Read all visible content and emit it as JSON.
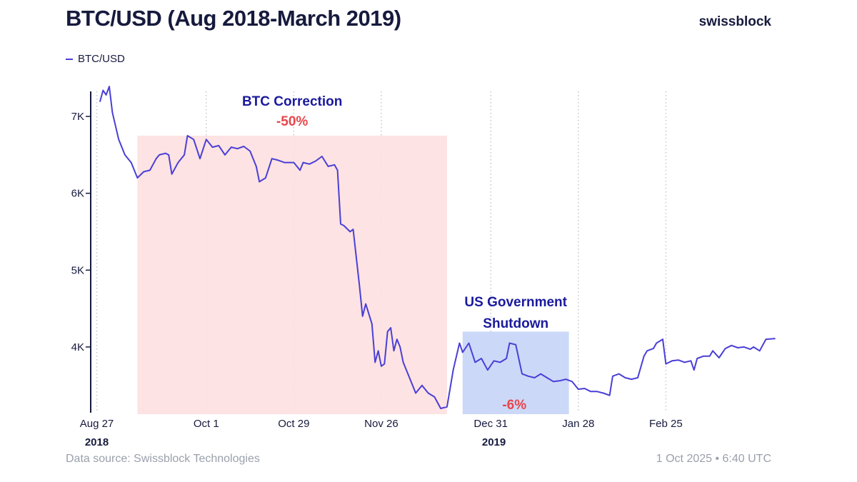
{
  "header": {
    "title": "BTC/USD (Aug 2018-March 2019)",
    "brand": "swissblock"
  },
  "footer": {
    "source": "Data source: Swissblock Technologies",
    "timestamp": "1 Oct 2025 • 6:40 UTC"
  },
  "colors": {
    "line": "#4a3fd6",
    "text": "#161a3d",
    "correction_fill": "#fde0e0",
    "shutdown_fill": "#c9d6f7",
    "red": "#e8464b",
    "navy": "#1a1a9e"
  },
  "chart_data": {
    "type": "line",
    "title": "BTC/USD (Aug 2018-March 2019)",
    "xlabel": "",
    "ylabel": "",
    "ylim": [
      3200,
      7400
    ],
    "grid": "vertical-dotted",
    "legend": {
      "entries": [
        "BTC/USD"
      ],
      "placement": "top-left"
    },
    "y_ticks": [
      {
        "value": 4000,
        "label": "4K"
      },
      {
        "value": 5000,
        "label": "5K"
      },
      {
        "value": 6000,
        "label": "6K"
      },
      {
        "value": 7000,
        "label": "7K"
      }
    ],
    "x_ticks": [
      {
        "date": "2018-08-27",
        "label": "Aug 27"
      },
      {
        "date": "2018-10-01",
        "label": "Oct 1"
      },
      {
        "date": "2018-10-29",
        "label": "Oct 29"
      },
      {
        "date": "2018-11-26",
        "label": "Nov 26"
      },
      {
        "date": "2018-12-31",
        "label": "Dec 31"
      },
      {
        "date": "2019-01-28",
        "label": "Jan 28"
      },
      {
        "date": "2019-02-25",
        "label": "Feb 25"
      }
    ],
    "year_labels": [
      {
        "date": "2018-08-27",
        "label": "2018"
      },
      {
        "date": "2019-01-01",
        "label": "2019"
      }
    ],
    "series": [
      {
        "name": "BTC/USD",
        "points": [
          [
            "2018-08-28",
            7190
          ],
          [
            "2018-08-29",
            7340
          ],
          [
            "2018-08-30",
            7280
          ],
          [
            "2018-08-31",
            7390
          ],
          [
            "2018-09-01",
            7050
          ],
          [
            "2018-09-03",
            6700
          ],
          [
            "2018-09-05",
            6500
          ],
          [
            "2018-09-07",
            6400
          ],
          [
            "2018-09-09",
            6200
          ],
          [
            "2018-09-11",
            6280
          ],
          [
            "2018-09-13",
            6300
          ],
          [
            "2018-09-15",
            6450
          ],
          [
            "2018-09-16",
            6500
          ],
          [
            "2018-09-18",
            6520
          ],
          [
            "2018-09-19",
            6500
          ],
          [
            "2018-09-20",
            6250
          ],
          [
            "2018-09-22",
            6400
          ],
          [
            "2018-09-24",
            6500
          ],
          [
            "2018-09-25",
            6750
          ],
          [
            "2018-09-27",
            6700
          ],
          [
            "2018-09-29",
            6450
          ],
          [
            "2018-10-01",
            6700
          ],
          [
            "2018-10-03",
            6600
          ],
          [
            "2018-10-05",
            6620
          ],
          [
            "2018-10-07",
            6500
          ],
          [
            "2018-10-09",
            6600
          ],
          [
            "2018-10-11",
            6580
          ],
          [
            "2018-10-13",
            6610
          ],
          [
            "2018-10-15",
            6550
          ],
          [
            "2018-10-17",
            6350
          ],
          [
            "2018-10-18",
            6150
          ],
          [
            "2018-10-20",
            6200
          ],
          [
            "2018-10-22",
            6450
          ],
          [
            "2018-10-24",
            6430
          ],
          [
            "2018-10-26",
            6400
          ],
          [
            "2018-10-29",
            6400
          ],
          [
            "2018-10-31",
            6300
          ],
          [
            "2018-11-01",
            6400
          ],
          [
            "2018-11-03",
            6380
          ],
          [
            "2018-11-05",
            6420
          ],
          [
            "2018-11-07",
            6480
          ],
          [
            "2018-11-09",
            6350
          ],
          [
            "2018-11-11",
            6370
          ],
          [
            "2018-11-12",
            6300
          ],
          [
            "2018-11-13",
            5600
          ],
          [
            "2018-11-14",
            5580
          ],
          [
            "2018-11-16",
            5500
          ],
          [
            "2018-11-17",
            5530
          ],
          [
            "2018-11-19",
            4800
          ],
          [
            "2018-11-20",
            4400
          ],
          [
            "2018-11-21",
            4560
          ],
          [
            "2018-11-23",
            4300
          ],
          [
            "2018-11-24",
            3800
          ],
          [
            "2018-11-25",
            3950
          ],
          [
            "2018-11-26",
            3750
          ],
          [
            "2018-11-27",
            3780
          ],
          [
            "2018-11-28",
            4200
          ],
          [
            "2018-11-29",
            4250
          ],
          [
            "2018-11-30",
            3950
          ],
          [
            "2018-12-01",
            4100
          ],
          [
            "2018-12-02",
            4000
          ],
          [
            "2018-12-03",
            3800
          ],
          [
            "2018-12-05",
            3600
          ],
          [
            "2018-12-07",
            3400
          ],
          [
            "2018-12-09",
            3500
          ],
          [
            "2018-12-11",
            3400
          ],
          [
            "2018-12-13",
            3350
          ],
          [
            "2018-12-15",
            3200
          ],
          [
            "2018-12-17",
            3220
          ],
          [
            "2018-12-19",
            3700
          ],
          [
            "2018-12-21",
            4050
          ],
          [
            "2018-12-22",
            3930
          ],
          [
            "2018-12-24",
            4050
          ],
          [
            "2018-12-26",
            3800
          ],
          [
            "2018-12-28",
            3850
          ],
          [
            "2018-12-30",
            3700
          ],
          [
            "2019-01-01",
            3820
          ],
          [
            "2019-01-03",
            3800
          ],
          [
            "2019-01-05",
            3850
          ],
          [
            "2019-01-06",
            4050
          ],
          [
            "2019-01-08",
            4030
          ],
          [
            "2019-01-10",
            3650
          ],
          [
            "2019-01-12",
            3620
          ],
          [
            "2019-01-14",
            3600
          ],
          [
            "2019-01-16",
            3650
          ],
          [
            "2019-01-18",
            3600
          ],
          [
            "2019-01-20",
            3550
          ],
          [
            "2019-01-22",
            3560
          ],
          [
            "2019-01-24",
            3580
          ],
          [
            "2019-01-26",
            3550
          ],
          [
            "2019-01-28",
            3450
          ],
          [
            "2019-01-30",
            3460
          ],
          [
            "2019-02-01",
            3420
          ],
          [
            "2019-02-03",
            3420
          ],
          [
            "2019-02-05",
            3400
          ],
          [
            "2019-02-07",
            3370
          ],
          [
            "2019-02-08",
            3620
          ],
          [
            "2019-02-10",
            3650
          ],
          [
            "2019-02-12",
            3600
          ],
          [
            "2019-02-14",
            3580
          ],
          [
            "2019-02-16",
            3600
          ],
          [
            "2019-02-18",
            3880
          ],
          [
            "2019-02-19",
            3950
          ],
          [
            "2019-02-21",
            3980
          ],
          [
            "2019-02-22",
            4050
          ],
          [
            "2019-02-24",
            4100
          ],
          [
            "2019-02-25",
            3780
          ],
          [
            "2019-02-27",
            3820
          ],
          [
            "2019-03-01",
            3830
          ],
          [
            "2019-03-03",
            3800
          ],
          [
            "2019-03-05",
            3820
          ],
          [
            "2019-03-06",
            3700
          ],
          [
            "2019-03-07",
            3850
          ],
          [
            "2019-03-09",
            3880
          ],
          [
            "2019-03-11",
            3880
          ],
          [
            "2019-03-12",
            3950
          ],
          [
            "2019-03-14",
            3860
          ],
          [
            "2019-03-16",
            3980
          ],
          [
            "2019-03-18",
            4020
          ],
          [
            "2019-03-20",
            3990
          ],
          [
            "2019-03-22",
            4000
          ],
          [
            "2019-03-24",
            3970
          ],
          [
            "2019-03-25",
            4000
          ],
          [
            "2019-03-27",
            3950
          ],
          [
            "2019-03-29",
            4100
          ],
          [
            "2019-04-01",
            4110
          ]
        ]
      }
    ],
    "annotations": [
      {
        "name": "correction",
        "title": "BTC Correction",
        "value": "-50%",
        "x_start": "2018-09-09",
        "x_end": "2018-12-17",
        "y_start": 3200,
        "y_end": 6750
      },
      {
        "name": "shutdown",
        "title_lines": [
          "US Government",
          "Shutdown"
        ],
        "value": "-6%",
        "x_start": "2018-12-22",
        "x_end": "2019-01-25",
        "y_start": 3200,
        "y_end": 4200
      }
    ]
  }
}
